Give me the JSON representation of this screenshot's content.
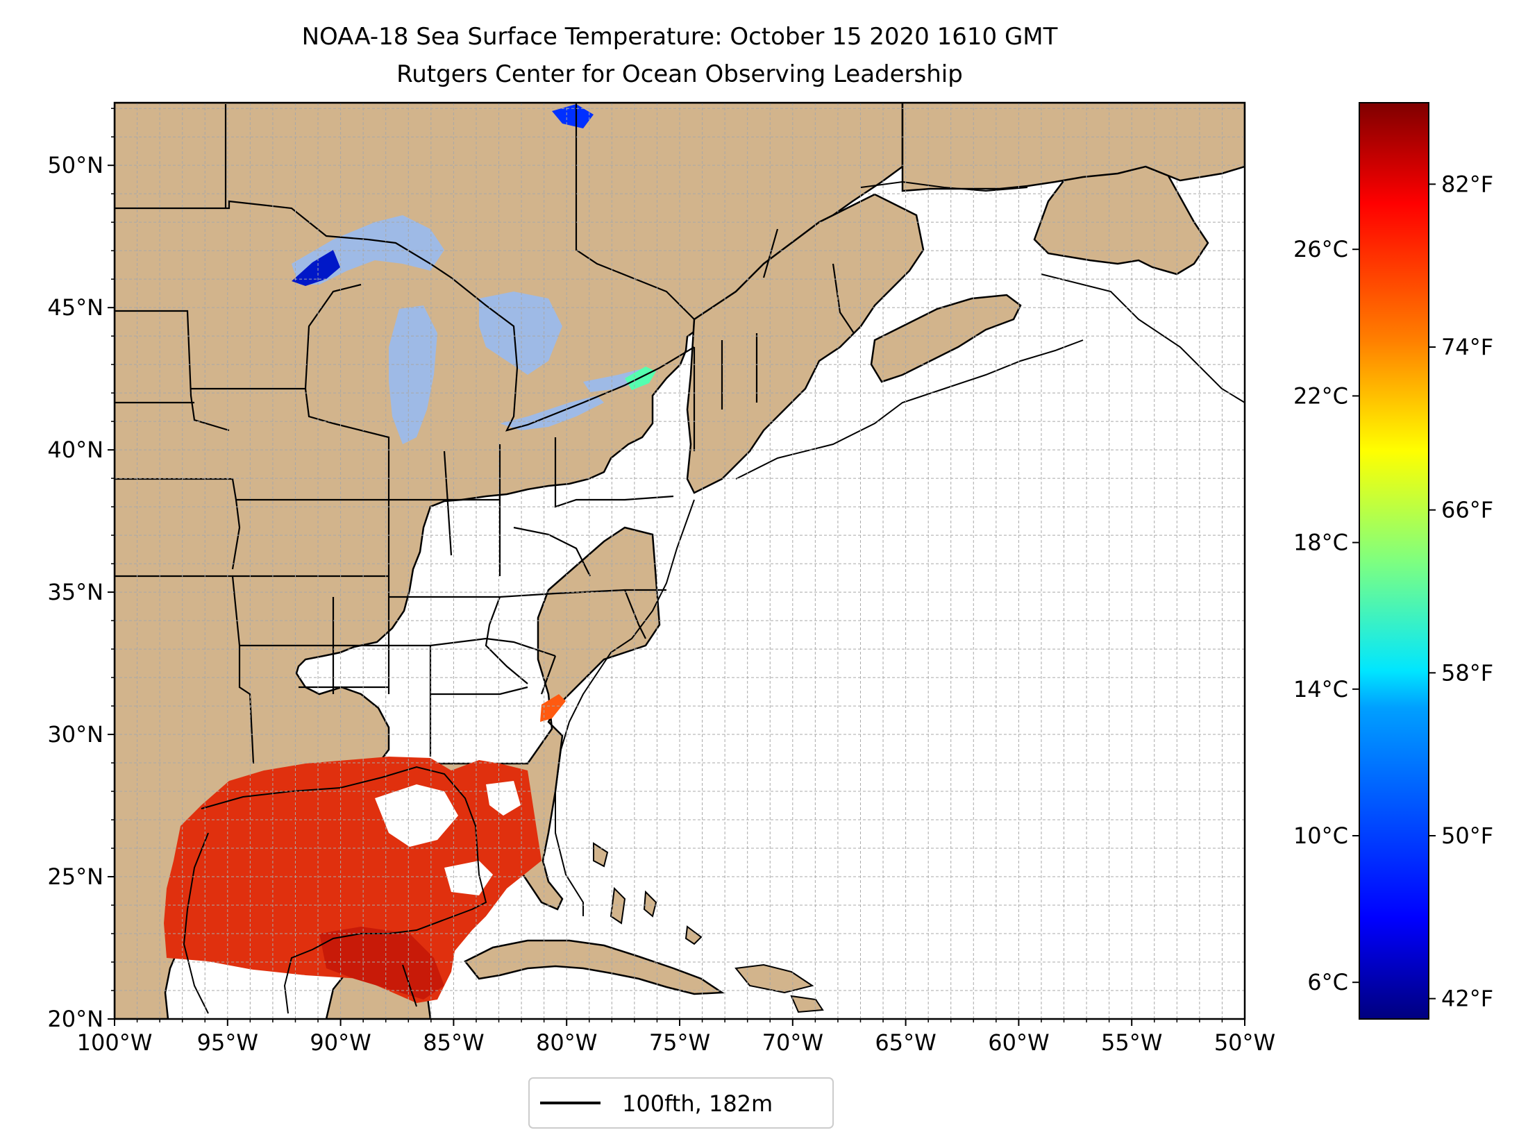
{
  "title": {
    "line1": "NOAA-18 Sea Surface Temperature: October 15 2020 1610 GMT",
    "line2": "Rutgers Center for Ocean Observing Leadership"
  },
  "map": {
    "lon_range": [
      -100,
      -50
    ],
    "lat_range": [
      20,
      52.2
    ],
    "lon_ticks": [
      {
        "value": -100,
        "label": "100°W"
      },
      {
        "value": -95,
        "label": "95°W"
      },
      {
        "value": -90,
        "label": "90°W"
      },
      {
        "value": -85,
        "label": "85°W"
      },
      {
        "value": -80,
        "label": "80°W"
      },
      {
        "value": -75,
        "label": "75°W"
      },
      {
        "value": -70,
        "label": "70°W"
      },
      {
        "value": -65,
        "label": "65°W"
      },
      {
        "value": -60,
        "label": "60°W"
      },
      {
        "value": -55,
        "label": "55°W"
      },
      {
        "value": -50,
        "label": "50°W"
      }
    ],
    "lat_ticks": [
      {
        "value": 20,
        "label": "20°N"
      },
      {
        "value": 25,
        "label": "25°N"
      },
      {
        "value": 30,
        "label": "30°N"
      },
      {
        "value": 35,
        "label": "35°N"
      },
      {
        "value": 40,
        "label": "40°N"
      },
      {
        "value": 45,
        "label": "45°N"
      },
      {
        "value": 50,
        "label": "50°N"
      }
    ],
    "grid_step_deg": 1
  },
  "colorbar": {
    "range_c": [
      5,
      30
    ],
    "celsius_ticks": [
      {
        "value": 6,
        "label": "6°C"
      },
      {
        "value": 10,
        "label": "10°C"
      },
      {
        "value": 14,
        "label": "14°C"
      },
      {
        "value": 18,
        "label": "18°C"
      },
      {
        "value": 22,
        "label": "22°C"
      },
      {
        "value": 26,
        "label": "26°C"
      }
    ],
    "fahrenheit_ticks": [
      {
        "value": 42,
        "label": "42°F"
      },
      {
        "value": 50,
        "label": "50°F"
      },
      {
        "value": 58,
        "label": "58°F"
      },
      {
        "value": 66,
        "label": "66°F"
      },
      {
        "value": 74,
        "label": "74°F"
      },
      {
        "value": 82,
        "label": "82°F"
      }
    ],
    "colors": [
      "#00007f",
      "#0000ff",
      "#007fff",
      "#00ffff",
      "#7fff7f",
      "#ffff00",
      "#ff7f00",
      "#ff0000",
      "#7f0000"
    ]
  },
  "legend": {
    "label": "100fth, 182m"
  },
  "colors": {
    "land": "#d2b48c",
    "lakes": "#9ebae6",
    "gulf_sst": "#e0300e",
    "gulf_sst_warm": "#c81a08"
  }
}
